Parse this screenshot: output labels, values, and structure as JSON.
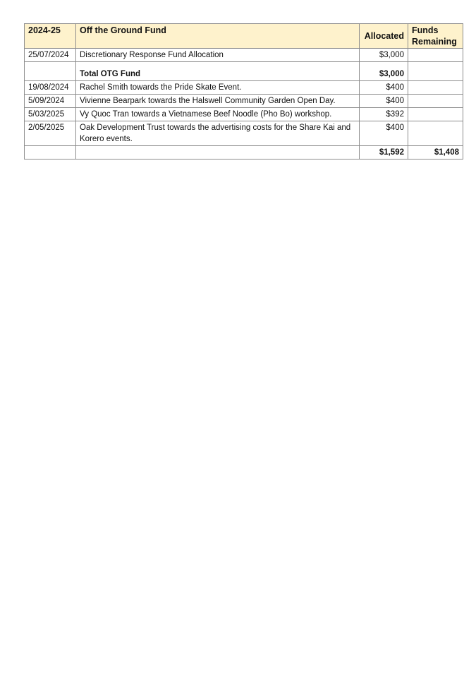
{
  "header": {
    "year": "2024-25",
    "fund": "Off the Ground Fund",
    "allocated": "Allocated",
    "remaining": "Funds Remaining"
  },
  "rows": [
    {
      "date": "25/07/2024",
      "description": "Discretionary Response Fund Allocation",
      "allocated": "$3,000",
      "remaining": ""
    },
    {
      "date": "",
      "description": "Total OTG Fund",
      "allocated": "$3,000",
      "remaining": ""
    },
    {
      "date": "19/08/2024",
      "description": "Rachel Smith towards the Pride Skate Event.",
      "allocated": "$400",
      "remaining": ""
    },
    {
      "date": "5/09/2024",
      "description": "Vivienne Bearpark towards the Halswell Community Garden Open Day.",
      "allocated": "$400",
      "remaining": ""
    },
    {
      "date": "5/03/2025",
      "description": "Vy Quoc Tran towards a Vietnamese Beef Noodle (Pho Bo) workshop.",
      "allocated": "$392",
      "remaining": ""
    },
    {
      "date": "2/05/2025",
      "description": "Oak Development Trust towards the advertising costs for the Share Kai and Korero events.",
      "allocated": "$400",
      "remaining": ""
    },
    {
      "date": "",
      "description": "",
      "allocated": "$1,592",
      "remaining": "$1,408"
    }
  ],
  "colors": {
    "header_bg": "#fef2cc",
    "border": "#8c8c8c"
  }
}
